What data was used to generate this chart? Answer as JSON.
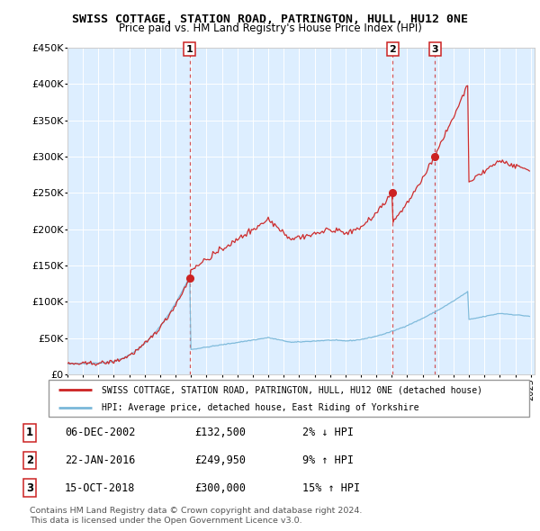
{
  "title": "SWISS COTTAGE, STATION ROAD, PATRINGTON, HULL, HU12 0NE",
  "subtitle": "Price paid vs. HM Land Registry's House Price Index (HPI)",
  "legend_line1": "SWISS COTTAGE, STATION ROAD, PATRINGTON, HULL, HU12 0NE (detached house)",
  "legend_line2": "HPI: Average price, detached house, East Riding of Yorkshire",
  "footer1": "Contains HM Land Registry data © Crown copyright and database right 2024.",
  "footer2": "This data is licensed under the Open Government Licence v3.0.",
  "transactions": [
    {
      "num": 1,
      "date": "06-DEC-2002",
      "price": "£132,500",
      "hpi": "2% ↓ HPI"
    },
    {
      "num": 2,
      "date": "22-JAN-2016",
      "price": "£249,950",
      "hpi": "9% ↑ HPI"
    },
    {
      "num": 3,
      "date": "15-OCT-2018",
      "price": "£300,000",
      "hpi": "15% ↑ HPI"
    }
  ],
  "sale_years": [
    2002.917,
    2016.055,
    2018.792
  ],
  "sale_prices": [
    132500,
    249950,
    300000
  ],
  "hpi_color": "#7ab8d9",
  "price_color": "#cc2222",
  "vline_color": "#cc2222",
  "bg_color": "#ddeeff",
  "ylim": [
    0,
    450000
  ],
  "xlim_start": 1995.0,
  "xlim_end": 2025.25,
  "ytick_labels": [
    "£0",
    "£50K",
    "£100K",
    "£150K",
    "£200K",
    "£250K",
    "£300K",
    "£350K",
    "£400K",
    "£450K"
  ],
  "ytick_vals": [
    0,
    50000,
    100000,
    150000,
    200000,
    250000,
    300000,
    350000,
    400000,
    450000
  ]
}
